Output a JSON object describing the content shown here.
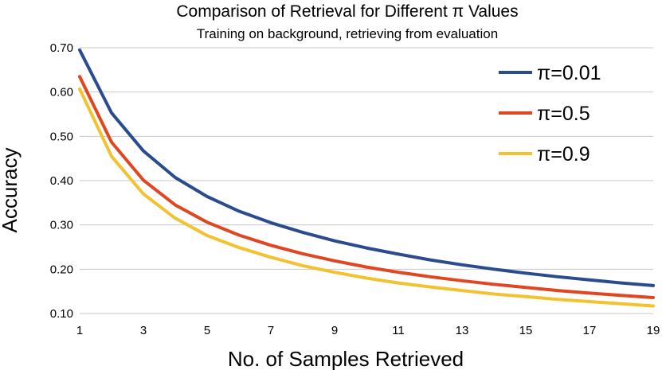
{
  "chart_data": {
    "type": "line",
    "title": "Comparison of Retrieval for Different π Values",
    "subtitle": "Training on background, retrieving from evaluation",
    "xlabel": "No. of Samples Retrieved",
    "ylabel": "Accuracy",
    "xlim": [
      1,
      19
    ],
    "ylim": [
      0.1,
      0.7
    ],
    "x_ticks": [
      1,
      3,
      5,
      7,
      9,
      11,
      13,
      15,
      17,
      19
    ],
    "y_ticks": [
      "0.10",
      "0.20",
      "0.30",
      "0.40",
      "0.50",
      "0.60",
      "0.70"
    ],
    "grid": true,
    "legend_position": "top-right",
    "x": [
      1,
      2,
      3,
      4,
      5,
      6,
      7,
      8,
      9,
      10,
      11,
      12,
      13,
      14,
      15,
      16,
      17,
      18,
      19
    ],
    "series": [
      {
        "name": "π=0.01",
        "color": "#2a4b8d",
        "values": [
          0.695,
          0.553,
          0.467,
          0.407,
          0.364,
          0.331,
          0.305,
          0.283,
          0.264,
          0.248,
          0.234,
          0.221,
          0.21,
          0.2,
          0.191,
          0.183,
          0.176,
          0.169,
          0.163
        ]
      },
      {
        "name": "π=0.5",
        "color": "#e0461f",
        "values": [
          0.635,
          0.487,
          0.401,
          0.345,
          0.306,
          0.277,
          0.254,
          0.235,
          0.219,
          0.205,
          0.193,
          0.183,
          0.174,
          0.166,
          0.159,
          0.152,
          0.146,
          0.141,
          0.136
        ]
      },
      {
        "name": "π=0.9",
        "color": "#f2c230",
        "values": [
          0.607,
          0.455,
          0.37,
          0.315,
          0.276,
          0.249,
          0.227,
          0.208,
          0.193,
          0.18,
          0.169,
          0.16,
          0.152,
          0.144,
          0.138,
          0.132,
          0.127,
          0.122,
          0.117
        ]
      }
    ]
  }
}
